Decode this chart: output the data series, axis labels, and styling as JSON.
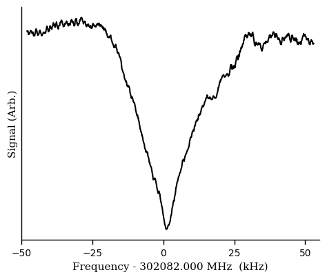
{
  "xlabel": "Frequency - 302082.000 MHz  (kHz)",
  "ylabel": "Signal (Arb.)",
  "xlim": [
    -50,
    55
  ],
  "xticks": [
    -50,
    -25,
    0,
    25,
    50
  ],
  "line_color": "#000000",
  "line_width": 1.5,
  "background_color": "#ffffff",
  "seed": 42
}
